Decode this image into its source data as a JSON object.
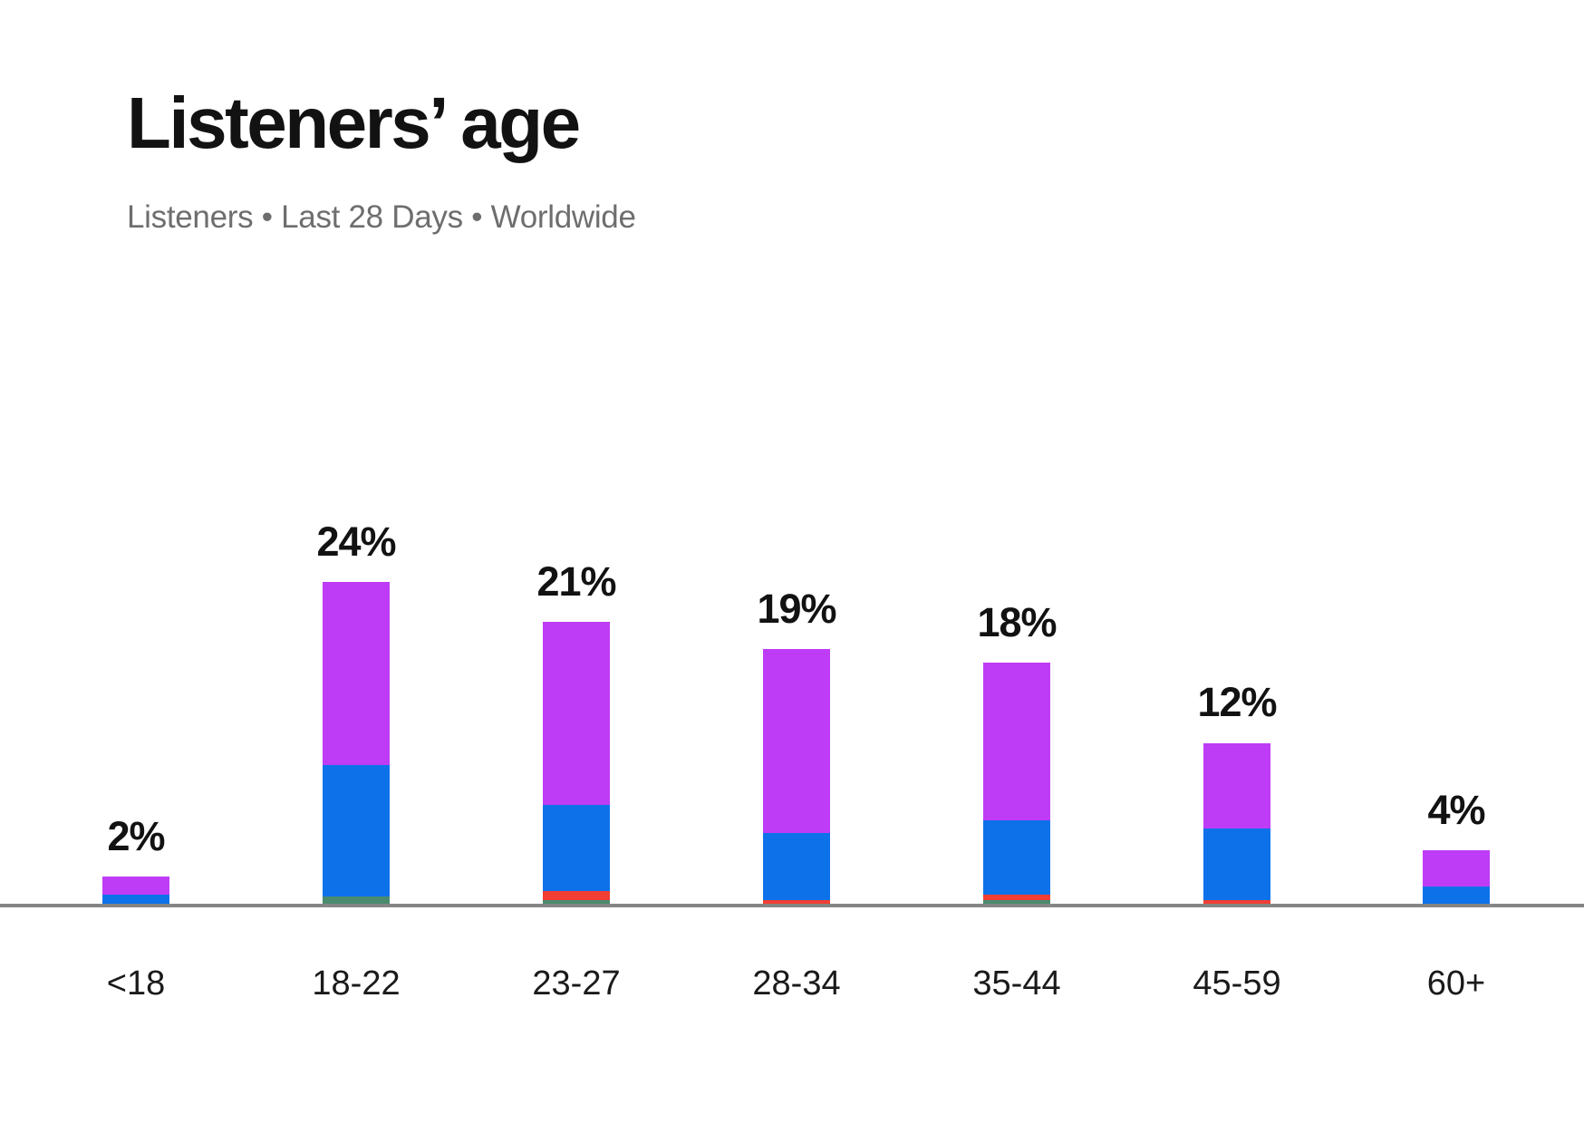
{
  "header": {
    "title": "Listeners’ age",
    "subtitle": "Listeners • Last 28 Days • Worldwide"
  },
  "colors": {
    "purple": "#be3cf5",
    "blue": "#0d72ea",
    "green": "#4a8b70",
    "red": "#f23e33",
    "axis_line": "#858585",
    "title_text": "#121212",
    "subtitle_text": "#6e6e6e",
    "label_text": "#121212"
  },
  "chart_data": {
    "type": "bar",
    "stacked": true,
    "title": "Listeners’ age",
    "subtitle": "Listeners • Last 28 Days • Worldwide",
    "unit": "percent of listeners",
    "legend_position": "none",
    "grid": false,
    "x_axis_line": true,
    "categories": [
      "<18",
      "18-22",
      "23-27",
      "28-34",
      "35-44",
      "45-59",
      "60+"
    ],
    "bar_total_labels": [
      "2%",
      "24%",
      "21%",
      "19%",
      "18%",
      "12%",
      "4%"
    ],
    "totals_percent": [
      2,
      24,
      21,
      19,
      18,
      12,
      4
    ],
    "stack_order": "bottom-to-top",
    "series": [
      {
        "name": "green-segment",
        "color_key": "green",
        "values": [
          0,
          0.55,
          0.3,
          0,
          0.3,
          0,
          0
        ]
      },
      {
        "name": "red-segment",
        "color_key": "red",
        "values": [
          0,
          0,
          0.65,
          0.3,
          0.35,
          0.3,
          0
        ]
      },
      {
        "name": "blue-segment",
        "color_key": "blue",
        "values": [
          0.7,
          9.8,
          6.4,
          5.0,
          5.6,
          5.3,
          1.3
        ]
      },
      {
        "name": "purple-segment",
        "color_key": "purple",
        "values": [
          1.3,
          13.65,
          13.65,
          13.7,
          11.75,
          6.4,
          2.7
        ]
      }
    ]
  }
}
